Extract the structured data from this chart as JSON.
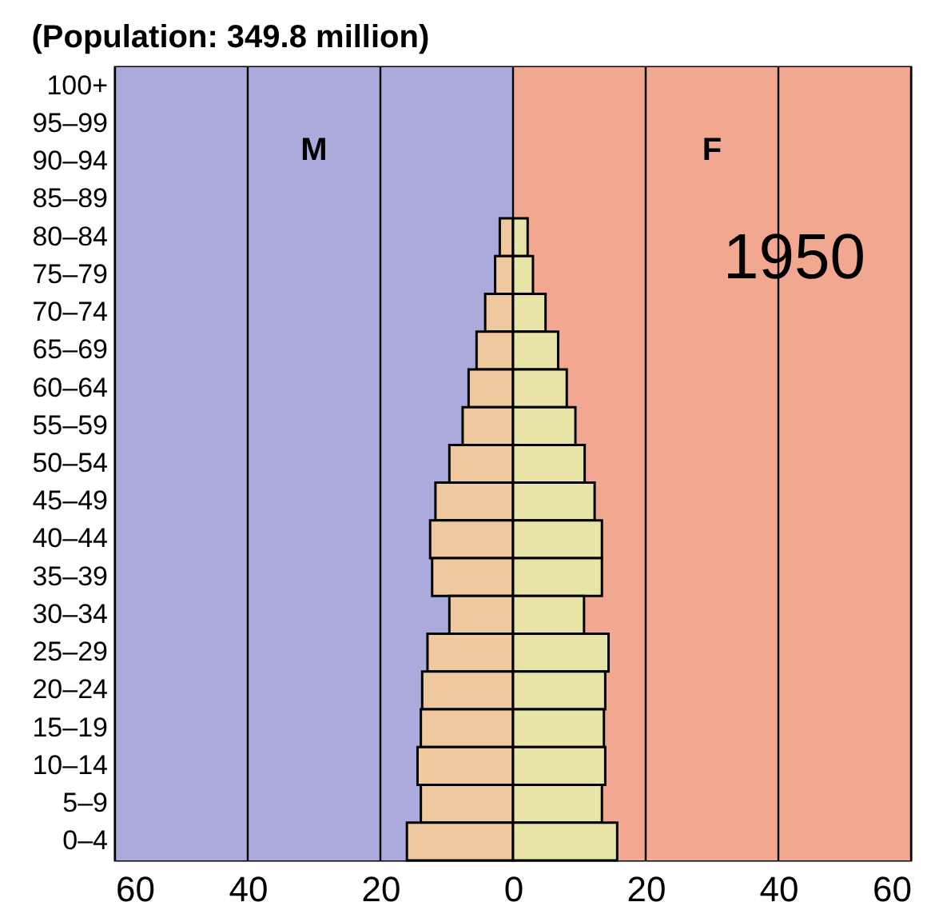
{
  "chart_data": {
    "type": "bar",
    "orientation": "horizontal",
    "title": "(Population: 349.8 million)",
    "categories": [
      "100+",
      "95–99",
      "90–94",
      "85–89",
      "80–84",
      "75–79",
      "70–74",
      "65–69",
      "60–64",
      "55–59",
      "50–54",
      "45–49",
      "40–44",
      "35–39",
      "30–34",
      "25–29",
      "20–24",
      "15–19",
      "10–14",
      "5–9",
      "0–4"
    ],
    "series": [
      {
        "color": "#f0c8a0",
        "values": [
          null,
          null,
          null,
          null,
          -2.0,
          -2.7,
          -4.2,
          -5.5,
          -6.7,
          -7.6,
          -9.6,
          -11.7,
          -12.5,
          -12.2,
          -9.6,
          -12.9,
          -13.7,
          -13.9,
          -14.4,
          -13.9,
          -16.0
        ]
      },
      {
        "color": "#e8e4a8",
        "values": [
          null,
          null,
          null,
          null,
          2.2,
          3.0,
          4.9,
          6.8,
          8.1,
          9.4,
          10.8,
          12.3,
          13.4,
          13.4,
          10.7,
          14.4,
          13.9,
          13.7,
          13.9,
          13.4,
          15.7
        ]
      }
    ],
    "xlim": [
      -60,
      60
    ],
    "xticks": [
      {
        "value": -60,
        "label": "60"
      },
      {
        "value": -40,
        "label": "40"
      },
      {
        "value": -20,
        "label": "20"
      },
      0,
      20,
      40,
      60
    ],
    "grid": "x",
    "stacked": true,
    "bands": [
      {
        "axis": "x",
        "from": -60,
        "to": 0,
        "label": "M",
        "color": "#aaaadc"
      },
      {
        "axis": "x",
        "from": 0,
        "to": 60,
        "label": "F",
        "color": "#f2a890"
      }
    ],
    "annotations": [
      "1950"
    ]
  }
}
